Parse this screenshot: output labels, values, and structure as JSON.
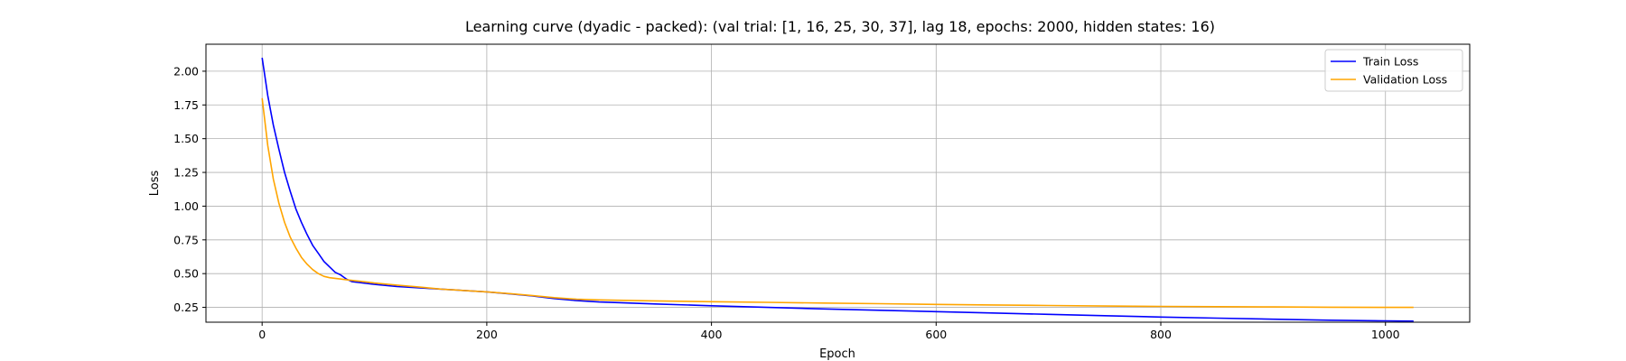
{
  "chart_data": {
    "type": "line",
    "title": "Learning curve (dyadic - packed): (val trial: [1, 16, 25, 30, 37], lag 18, epochs: 2000, hidden states: 16)",
    "xlabel": "Epoch",
    "ylabel": "Loss",
    "xlim": [
      -50,
      1075
    ],
    "ylim": [
      0.14,
      2.2
    ],
    "xticks": [
      0,
      200,
      400,
      600,
      800,
      1000
    ],
    "yticks": [
      0.25,
      0.5,
      0.75,
      1.0,
      1.25,
      1.5,
      1.75,
      2.0
    ],
    "ytick_labels": [
      "0.25",
      "0.50",
      "0.75",
      "1.00",
      "1.25",
      "1.50",
      "1.75",
      "2.00"
    ],
    "grid": true,
    "legend_position": "top-right",
    "series": [
      {
        "name": "Train Loss",
        "color": "#0000ff",
        "x": [
          0,
          5,
          10,
          15,
          20,
          25,
          30,
          35,
          40,
          45,
          50,
          55,
          60,
          65,
          70,
          75,
          80,
          90,
          100,
          120,
          140,
          160,
          180,
          200,
          220,
          240,
          260,
          280,
          300,
          350,
          400,
          450,
          500,
          550,
          600,
          650,
          700,
          750,
          800,
          850,
          900,
          950,
          1000,
          1025
        ],
        "values": [
          2.1,
          1.82,
          1.6,
          1.42,
          1.25,
          1.11,
          0.98,
          0.88,
          0.79,
          0.71,
          0.65,
          0.59,
          0.55,
          0.51,
          0.49,
          0.46,
          0.44,
          0.43,
          0.42,
          0.405,
          0.395,
          0.385,
          0.375,
          0.365,
          0.35,
          0.335,
          0.315,
          0.3,
          0.29,
          0.275,
          0.262,
          0.25,
          0.238,
          0.228,
          0.218,
          0.208,
          0.198,
          0.188,
          0.178,
          0.17,
          0.162,
          0.155,
          0.15,
          0.148
        ]
      },
      {
        "name": "Validation Loss",
        "color": "#ffa500",
        "x": [
          0,
          5,
          10,
          15,
          20,
          25,
          30,
          35,
          40,
          45,
          50,
          55,
          60,
          65,
          70,
          80,
          90,
          100,
          120,
          140,
          160,
          180,
          200,
          220,
          240,
          260,
          280,
          300,
          350,
          400,
          450,
          500,
          550,
          600,
          650,
          700,
          750,
          800,
          850,
          900,
          950,
          1000,
          1025
        ],
        "values": [
          1.8,
          1.45,
          1.2,
          1.02,
          0.88,
          0.77,
          0.69,
          0.62,
          0.57,
          0.53,
          0.5,
          0.48,
          0.47,
          0.465,
          0.46,
          0.45,
          0.44,
          0.43,
          0.415,
          0.4,
          0.385,
          0.375,
          0.365,
          0.352,
          0.338,
          0.322,
          0.31,
          0.305,
          0.298,
          0.292,
          0.287,
          0.282,
          0.277,
          0.272,
          0.268,
          0.264,
          0.26,
          0.257,
          0.255,
          0.253,
          0.251,
          0.25,
          0.25
        ]
      }
    ]
  }
}
